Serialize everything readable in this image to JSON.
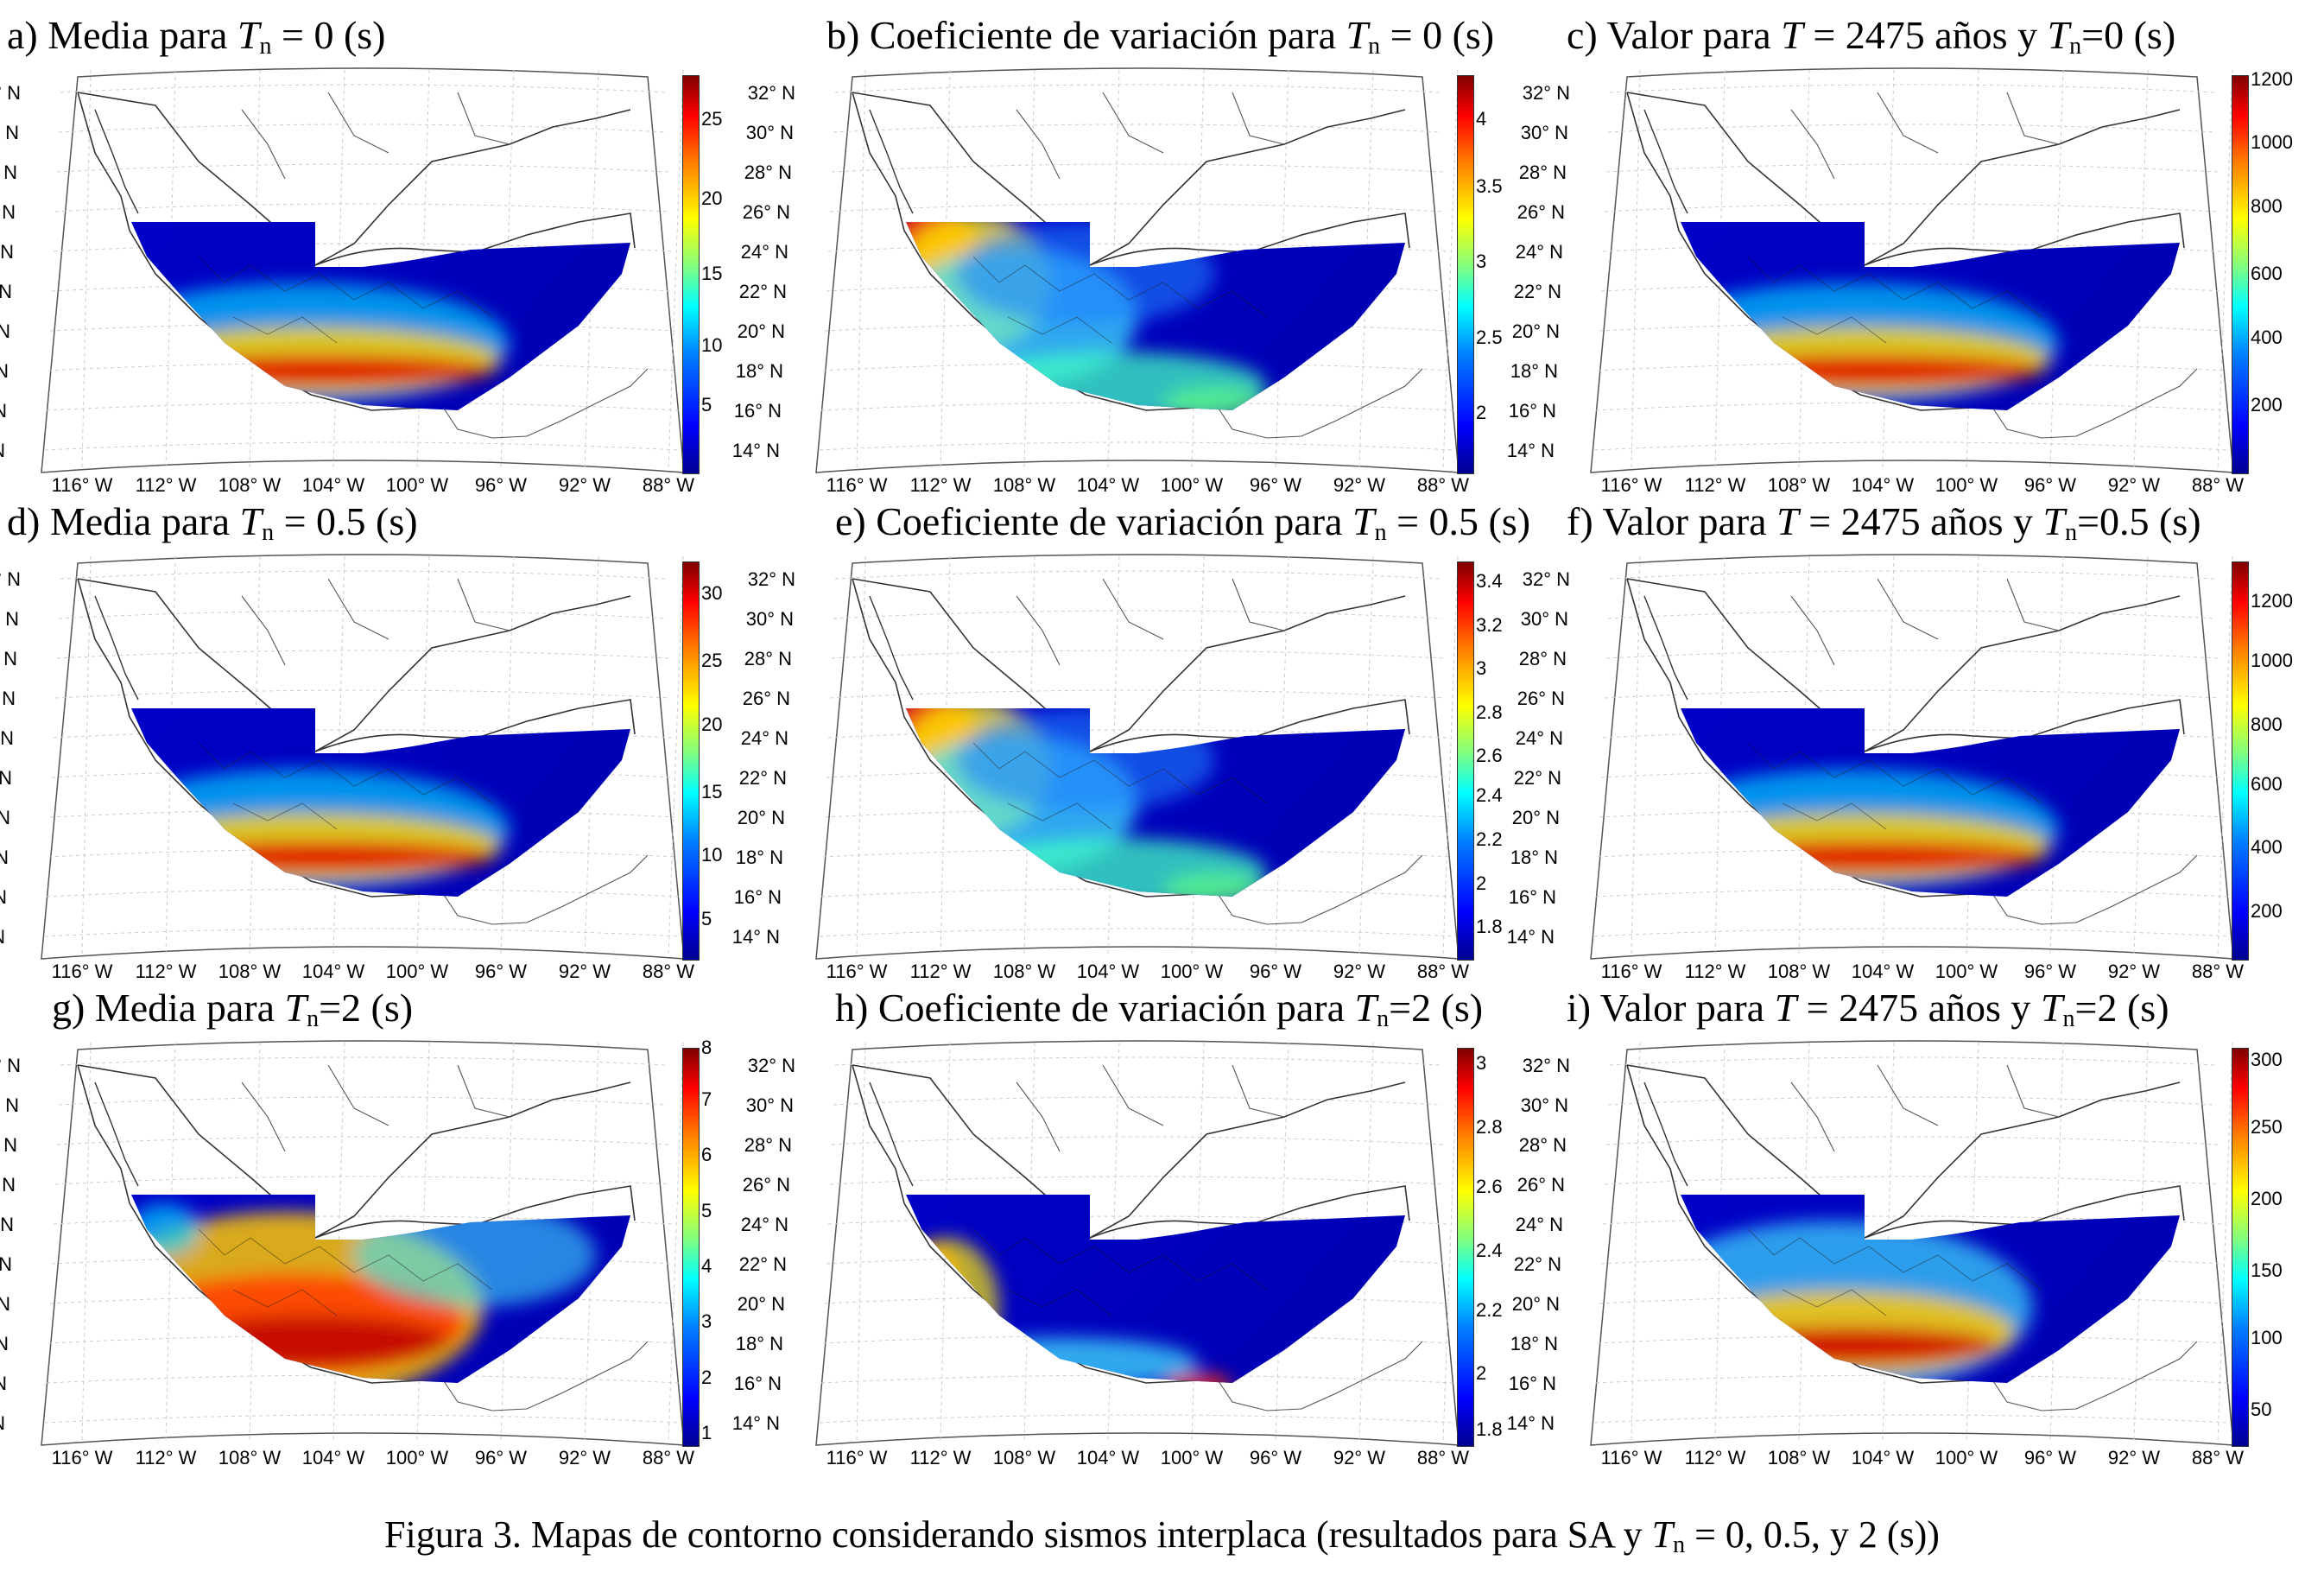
{
  "panels": [
    {
      "letter": "a)",
      "pre": "Media para ",
      "var": "T",
      "sub": "n",
      "post": " = 0 (s)",
      "ticks": [
        "25",
        "20",
        "15",
        "10",
        "5"
      ],
      "tick_pos": [
        0.11,
        0.31,
        0.5,
        0.68,
        0.83
      ],
      "hot": "low-strong"
    },
    {
      "letter": "b)",
      "pre": "Coeficiente de variación para ",
      "var": "T",
      "sub": "n",
      "post": " = 0 (s)",
      "ticks": [
        "4",
        "3.5",
        "3",
        "2.5",
        "2"
      ],
      "tick_pos": [
        0.11,
        0.28,
        0.47,
        0.66,
        0.85
      ],
      "hot": "cv"
    },
    {
      "letter": "c)",
      "pre": "Valor para ",
      "var": "T",
      "mid": " = 2475 años y ",
      "var2": "T",
      "sub2": "n",
      "post": "=0 (s)",
      "ticks": [
        "1200",
        "1000",
        "800",
        "600",
        "400",
        "200"
      ],
      "tick_pos": [
        0.01,
        0.17,
        0.33,
        0.5,
        0.66,
        0.83
      ],
      "hot": "low-strong"
    },
    {
      "letter": "d)",
      "pre": "Media para ",
      "var": "T",
      "sub": "n",
      "post": " = 0.5 (s)",
      "ticks": [
        "30",
        "25",
        "20",
        "15",
        "10",
        "5"
      ],
      "tick_pos": [
        0.08,
        0.25,
        0.41,
        0.58,
        0.74,
        0.9
      ],
      "hot": "low-strong"
    },
    {
      "letter": "e)",
      "pre": "Coeficiente de variación para ",
      "var": "T",
      "sub": "n",
      "post": " = 0.5 (s)",
      "ticks": [
        "3.4",
        "3.2",
        "3",
        "2.8",
        "2.6",
        "2.4",
        "2.2",
        "2",
        "1.8"
      ],
      "tick_pos": [
        0.05,
        0.16,
        0.27,
        0.38,
        0.49,
        0.59,
        0.7,
        0.81,
        0.92
      ],
      "hot": "cv"
    },
    {
      "letter": "f)",
      "pre": "Valor para ",
      "var": "T",
      "mid": " = 2475 años y ",
      "var2": "T",
      "sub2": "n",
      "post": "=0.5 (s)",
      "ticks": [
        "1200",
        "1000",
        "800",
        "600",
        "400",
        "200"
      ],
      "tick_pos": [
        0.1,
        0.25,
        0.41,
        0.56,
        0.72,
        0.88
      ],
      "hot": "low-strong"
    },
    {
      "letter": "g)",
      "pre": "Media para ",
      "var": "T",
      "sub": "n",
      "post": "=2 (s)",
      "ticks": [
        "8",
        "7",
        "6",
        "5",
        "4",
        "3",
        "2",
        "1"
      ],
      "tick_pos": [
        0.0,
        0.13,
        0.27,
        0.41,
        0.55,
        0.69,
        0.83,
        0.97
      ],
      "hot": "broad"
    },
    {
      "letter": "h)",
      "pre": "Coeficiente de variación para ",
      "var": "T",
      "sub": "n",
      "post": "=2 (s)",
      "ticks": [
        "3",
        "2.8",
        "2.6",
        "2.4",
        "2.2",
        "2",
        "1.8"
      ],
      "tick_pos": [
        0.04,
        0.2,
        0.35,
        0.51,
        0.66,
        0.82,
        0.96
      ],
      "hot": "cv2"
    },
    {
      "letter": "i)",
      "pre": "Valor para ",
      "var": "T",
      "mid": " = 2475 años y ",
      "var2": "T",
      "sub2": "n",
      "post": "=2 (s)",
      "ticks": [
        "300",
        "250",
        "200",
        "150",
        "100",
        "50"
      ],
      "tick_pos": [
        0.03,
        0.2,
        0.38,
        0.56,
        0.73,
        0.91
      ],
      "hot": "mid"
    }
  ],
  "lat_labels": [
    "32° N",
    "30° N",
    "28° N",
    "26° N",
    "24° N",
    "22° N",
    "20° N",
    "18° N",
    "16° N",
    "14° N"
  ],
  "lon_labels": [
    "116° W",
    "112° W",
    "108° W",
    "104° W",
    "100° W",
    "96° W",
    "92° W",
    "88° W"
  ],
  "caption": {
    "pre": "Figura 3.  Mapas de contorno considerando sismos interplaca (resultados para SA y ",
    "var": "T",
    "sub": "n",
    "post": " = 0, 0.5, y 2 (s))"
  }
}
